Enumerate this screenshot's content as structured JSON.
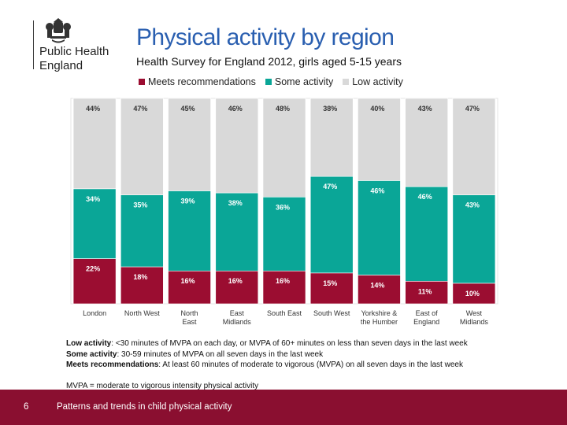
{
  "logo": {
    "line1": "Public Health",
    "line2": "England"
  },
  "title": "Physical activity by region",
  "subtitle": "Health Survey for England 2012, girls aged 5-15 years",
  "notes": {
    "low_label": "Low activity",
    "low_text": ": <30 minutes of MVPA on each day, or MVPA of 60+ minutes on less than seven days in the last week",
    "some_label": "Some activity",
    "some_text": ": 30-59 minutes of MVPA on all seven days in the last week",
    "meets_label": "Meets recommendations",
    "meets_text": ": At least 60 minutes of moderate to vigorous (MVPA) on all seven days in the last week",
    "mvpa": "MVPA = moderate to vigorous intensity physical activity"
  },
  "footer": {
    "page_number": "6",
    "text": "Patterns and trends in child physical activity"
  },
  "colors": {
    "meets": "#9b0d31",
    "some": "#0aa697",
    "low": "#d9d9d9",
    "footer": "#8a0f30",
    "title": "#2a5fb0"
  },
  "chart_data": {
    "type": "bar",
    "stacked": true,
    "categories": [
      "London",
      "North West",
      "North East",
      "East Midlands",
      "South East",
      "South West",
      "Yorkshire & the Humber",
      "East of England",
      "West Midlands"
    ],
    "category_lines": [
      [
        "London"
      ],
      [
        "North West"
      ],
      [
        "North",
        "East"
      ],
      [
        "East",
        "Midlands"
      ],
      [
        "South East"
      ],
      [
        "South West"
      ],
      [
        "Yorkshire &",
        "the Humber"
      ],
      [
        "East of",
        "England"
      ],
      [
        "West",
        "Midlands"
      ]
    ],
    "series": [
      {
        "name": "Meets recommendations",
        "color": "#9b0d31",
        "values": [
          22,
          18,
          16,
          16,
          16,
          15,
          14,
          11,
          10
        ]
      },
      {
        "name": "Some activity",
        "color": "#0aa697",
        "values": [
          34,
          35,
          39,
          38,
          36,
          47,
          46,
          46,
          43
        ]
      },
      {
        "name": "Low activity",
        "color": "#d9d9d9",
        "values": [
          44,
          47,
          45,
          46,
          48,
          38,
          40,
          43,
          47
        ]
      }
    ],
    "value_suffix": "%",
    "ylim": [
      0,
      100
    ],
    "legend_position": "top",
    "grid": false
  }
}
